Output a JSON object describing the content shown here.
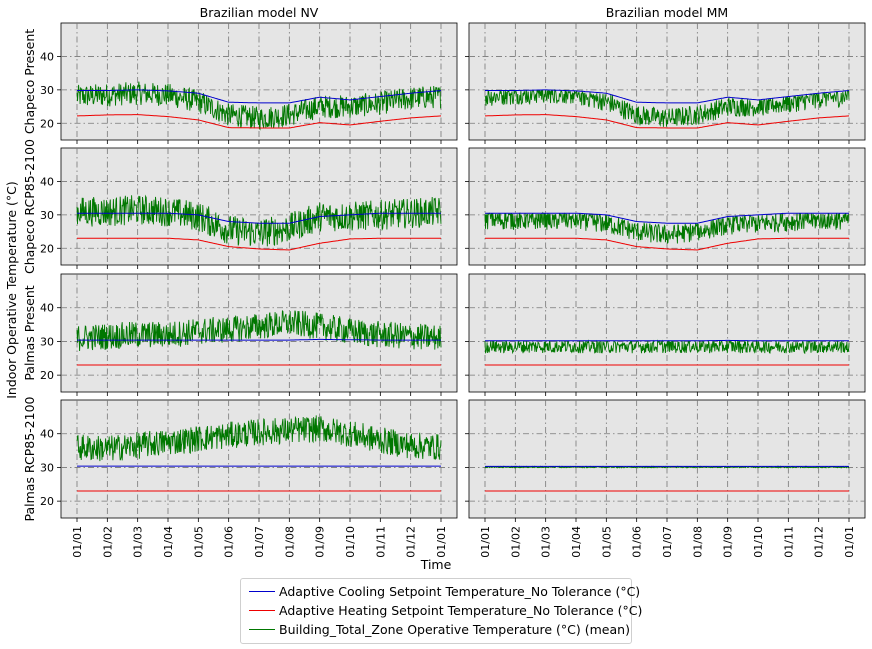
{
  "chart_data": {
    "type": "line",
    "col_titles": [
      "Brazilian model NV",
      "Brazilian model MM"
    ],
    "row_labels": [
      "Chapeco Present",
      "Chapeco RCP85-2100",
      "Palmas Present",
      "Palmas RCP85-2100"
    ],
    "ylabel": "Indoor Operative Temperature (°C)",
    "xlabel": "Time",
    "x_ticks": [
      "01/01",
      "01/02",
      "01/03",
      "01/04",
      "01/05",
      "01/06",
      "01/07",
      "01/08",
      "01/09",
      "01/10",
      "01/11",
      "01/12",
      "01/01"
    ],
    "y_ticks": [
      20,
      30,
      40
    ],
    "ylim": [
      15,
      50
    ],
    "grid": true,
    "legend_position": "bottom-center",
    "colors": {
      "cooling": "#0000cc",
      "heating": "#ee0000",
      "operative": "#007700",
      "background": "#e5e5e5"
    },
    "series_names": [
      "Adaptive Cooling Setpoint Temperature_No Tolerance (°C)",
      "Adaptive Heating Setpoint Temperature_No Tolerance (°C)",
      "Building_Total_Zone Operative Temperature (°C) (mean)"
    ],
    "months": [
      "Jan",
      "Feb",
      "Mar",
      "Apr",
      "May",
      "Jun",
      "Jul",
      "Aug",
      "Sep",
      "Oct",
      "Nov",
      "Dec",
      "Jan"
    ],
    "panels": [
      {
        "row": 0,
        "col": 0,
        "cooling": [
          29.8,
          29.8,
          30.0,
          29.7,
          29.0,
          26.3,
          26.1,
          26.1,
          27.8,
          27.0,
          28.0,
          29.0,
          29.8
        ],
        "heating": [
          22.2,
          22.5,
          22.6,
          22.0,
          21.0,
          18.7,
          18.6,
          18.6,
          20.2,
          19.5,
          20.6,
          21.6,
          22.2
        ],
        "operative_mean": [
          28.0,
          28.5,
          29.0,
          28.5,
          26.5,
          22.5,
          21.5,
          22.5,
          25.0,
          25.0,
          26.0,
          27.5,
          28.0
        ],
        "operative_spread": 3.5,
        "capped": false
      },
      {
        "row": 0,
        "col": 1,
        "cooling": [
          29.8,
          29.8,
          30.0,
          29.7,
          29.0,
          26.3,
          26.1,
          26.1,
          27.8,
          27.0,
          28.0,
          29.0,
          29.8
        ],
        "heating": [
          22.2,
          22.5,
          22.6,
          22.0,
          21.0,
          18.7,
          18.6,
          18.6,
          20.2,
          19.5,
          20.6,
          21.6,
          22.2
        ],
        "operative_mean": [
          28.0,
          28.5,
          29.0,
          28.5,
          26.5,
          22.5,
          21.5,
          22.5,
          25.0,
          25.0,
          26.0,
          27.5,
          28.0
        ],
        "operative_spread": 3.0,
        "capped": true
      },
      {
        "row": 1,
        "col": 0,
        "cooling": [
          30.5,
          30.5,
          30.5,
          30.5,
          30.0,
          28.0,
          27.5,
          27.5,
          29.5,
          30.0,
          30.5,
          30.5,
          30.5
        ],
        "heating": [
          23.0,
          23.0,
          23.0,
          23.0,
          22.5,
          20.5,
          19.8,
          19.5,
          21.5,
          22.8,
          23.0,
          23.0,
          23.0
        ],
        "operative_mean": [
          31.0,
          31.0,
          31.5,
          31.0,
          29.5,
          25.5,
          24.5,
          26.0,
          29.5,
          29.5,
          30.0,
          30.5,
          31.0
        ],
        "operative_spread": 4.5,
        "capped": false
      },
      {
        "row": 1,
        "col": 1,
        "cooling": [
          30.5,
          30.5,
          30.5,
          30.5,
          30.0,
          28.0,
          27.5,
          27.5,
          29.5,
          30.0,
          30.5,
          30.5,
          30.5
        ],
        "heating": [
          23.0,
          23.0,
          23.0,
          23.0,
          22.5,
          20.5,
          19.8,
          19.5,
          21.5,
          22.8,
          23.0,
          23.0,
          23.0
        ],
        "operative_mean": [
          28.5,
          28.5,
          28.5,
          28.5,
          27.5,
          25.0,
          24.0,
          25.0,
          27.0,
          27.5,
          28.0,
          28.5,
          28.5
        ],
        "operative_spread": 3.0,
        "capped": true
      },
      {
        "row": 2,
        "col": 0,
        "cooling": [
          30.4,
          30.4,
          30.4,
          30.4,
          30.4,
          30.4,
          30.4,
          30.4,
          30.6,
          30.5,
          30.4,
          30.4,
          30.4
        ],
        "heating": [
          23.0,
          23.0,
          23.0,
          23.0,
          23.0,
          23.0,
          23.0,
          23.0,
          23.0,
          23.0,
          23.0,
          23.0,
          23.0
        ],
        "operative_mean": [
          31.0,
          31.5,
          32.0,
          32.0,
          33.0,
          33.5,
          34.5,
          35.5,
          34.5,
          33.0,
          32.0,
          31.5,
          31.0
        ],
        "operative_spread": 4.0,
        "capped": false
      },
      {
        "row": 2,
        "col": 1,
        "cooling": [
          30.2,
          30.2,
          30.2,
          30.2,
          30.2,
          30.2,
          30.2,
          30.2,
          30.3,
          30.2,
          30.2,
          30.2,
          30.2
        ],
        "heating": [
          23.0,
          23.0,
          23.0,
          23.0,
          23.0,
          23.0,
          23.0,
          23.0,
          23.0,
          23.0,
          23.0,
          23.0,
          23.0
        ],
        "operative_mean": [
          28.5,
          28.5,
          28.5,
          28.5,
          28.5,
          28.5,
          28.5,
          28.5,
          28.5,
          28.5,
          28.5,
          28.5,
          28.5
        ],
        "operative_spread": 2.0,
        "capped": true
      },
      {
        "row": 3,
        "col": 0,
        "cooling": [
          30.4,
          30.4,
          30.4,
          30.4,
          30.4,
          30.4,
          30.4,
          30.4,
          30.4,
          30.4,
          30.4,
          30.4,
          30.4
        ],
        "heating": [
          23.0,
          23.0,
          23.0,
          23.0,
          23.0,
          23.0,
          23.0,
          23.0,
          23.0,
          23.0,
          23.0,
          23.0,
          23.0
        ],
        "operative_mean": [
          36.0,
          35.5,
          36.5,
          37.5,
          38.5,
          39.5,
          40.5,
          41.0,
          41.5,
          40.0,
          38.0,
          36.5,
          36.0
        ],
        "operative_spread": 4.0,
        "capped": false
      },
      {
        "row": 3,
        "col": 1,
        "cooling": [
          30.3,
          30.3,
          30.3,
          30.3,
          30.3,
          30.3,
          30.3,
          30.3,
          30.3,
          30.3,
          30.3,
          30.3,
          30.3
        ],
        "heating": [
          23.0,
          23.0,
          23.0,
          23.0,
          23.0,
          23.0,
          23.0,
          23.0,
          23.0,
          23.0,
          23.0,
          23.0,
          23.0
        ],
        "operative_mean": [
          30.2,
          30.2,
          30.2,
          30.2,
          30.2,
          30.2,
          30.2,
          30.2,
          30.2,
          30.2,
          30.2,
          30.2,
          30.2
        ],
        "operative_spread": 0.3,
        "capped": true
      }
    ]
  }
}
